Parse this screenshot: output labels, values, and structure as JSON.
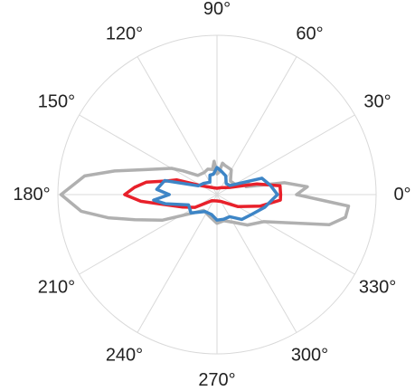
{
  "chart_data": {
    "type": "line",
    "subtype": "polar",
    "title": "",
    "angular_unit": "degrees",
    "angular_ticks": [
      0,
      30,
      60,
      90,
      120,
      150,
      180,
      210,
      240,
      270,
      300,
      330
    ],
    "angular_tick_labels": [
      "0°",
      "30°",
      "60°",
      "90°",
      "120°",
      "150°",
      "180°",
      "210°",
      "240°",
      "270°",
      "300°",
      "330°"
    ],
    "radial_range": [
      0,
      1
    ],
    "radial_ticks_shown": false,
    "grid": true,
    "legend": "none",
    "series": [
      {
        "color": "#b0b0b0",
        "points": [
          [
            0,
            0.5
          ],
          [
            5,
            0.57
          ],
          [
            10,
            0.43
          ],
          [
            15,
            0.19
          ],
          [
            20,
            0.21
          ],
          [
            30,
            0.13
          ],
          [
            45,
            0.12
          ],
          [
            60,
            0.18
          ],
          [
            75,
            0.19
          ],
          [
            80,
            0.2
          ],
          [
            85,
            0.14
          ],
          [
            90,
            0.13
          ],
          [
            95,
            0.21
          ],
          [
            100,
            0.16
          ],
          [
            110,
            0.17
          ],
          [
            120,
            0.16
          ],
          [
            135,
            0.17
          ],
          [
            145,
            0.26
          ],
          [
            150,
            0.33
          ],
          [
            160,
            0.46
          ],
          [
            167,
            0.66
          ],
          [
            172,
            0.84
          ],
          [
            180,
            0.98
          ],
          [
            187,
            0.86
          ],
          [
            192,
            0.7
          ],
          [
            197,
            0.54
          ],
          [
            205,
            0.38
          ],
          [
            215,
            0.21
          ],
          [
            230,
            0.13
          ],
          [
            255,
            0.15
          ],
          [
            270,
            0.18
          ],
          [
            285,
            0.17
          ],
          [
            300,
            0.2
          ],
          [
            315,
            0.27
          ],
          [
            330,
            0.34
          ],
          [
            345,
            0.73
          ],
          [
            350,
            0.82
          ],
          [
            355,
            0.83
          ],
          [
            360,
            0.5
          ]
        ]
      },
      {
        "color": "#e8202a",
        "points": [
          [
            0,
            0.4
          ],
          [
            8,
            0.4
          ],
          [
            15,
            0.26
          ],
          [
            30,
            0.09
          ],
          [
            60,
            0.05
          ],
          [
            90,
            0.04
          ],
          [
            120,
            0.05
          ],
          [
            150,
            0.11
          ],
          [
            160,
            0.27
          ],
          [
            165,
            0.33
          ],
          [
            170,
            0.45
          ],
          [
            175,
            0.52
          ],
          [
            180,
            0.58
          ],
          [
            185,
            0.48
          ],
          [
            190,
            0.35
          ],
          [
            200,
            0.23
          ],
          [
            210,
            0.16
          ],
          [
            230,
            0.05
          ],
          [
            270,
            0.04
          ],
          [
            300,
            0.05
          ],
          [
            330,
            0.15
          ],
          [
            345,
            0.28
          ],
          [
            355,
            0.4
          ],
          [
            360,
            0.4
          ]
        ]
      },
      {
        "color": "#3d85c6",
        "points": [
          [
            0,
            0.38
          ],
          [
            10,
            0.34
          ],
          [
            20,
            0.3
          ],
          [
            35,
            0.1
          ],
          [
            50,
            0.09
          ],
          [
            65,
            0.13
          ],
          [
            80,
            0.15
          ],
          [
            90,
            0.17
          ],
          [
            100,
            0.13
          ],
          [
            110,
            0.13
          ],
          [
            120,
            0.09
          ],
          [
            140,
            0.11
          ],
          [
            155,
            0.13
          ],
          [
            165,
            0.34
          ],
          [
            175,
            0.38
          ],
          [
            180,
            0.3
          ],
          [
            185,
            0.4
          ],
          [
            190,
            0.33
          ],
          [
            200,
            0.19
          ],
          [
            215,
            0.2
          ],
          [
            235,
            0.13
          ],
          [
            255,
            0.13
          ],
          [
            270,
            0.16
          ],
          [
            285,
            0.16
          ],
          [
            300,
            0.16
          ],
          [
            315,
            0.22
          ],
          [
            330,
            0.25
          ],
          [
            345,
            0.31
          ],
          [
            355,
            0.35
          ],
          [
            360,
            0.38
          ]
        ]
      }
    ]
  }
}
